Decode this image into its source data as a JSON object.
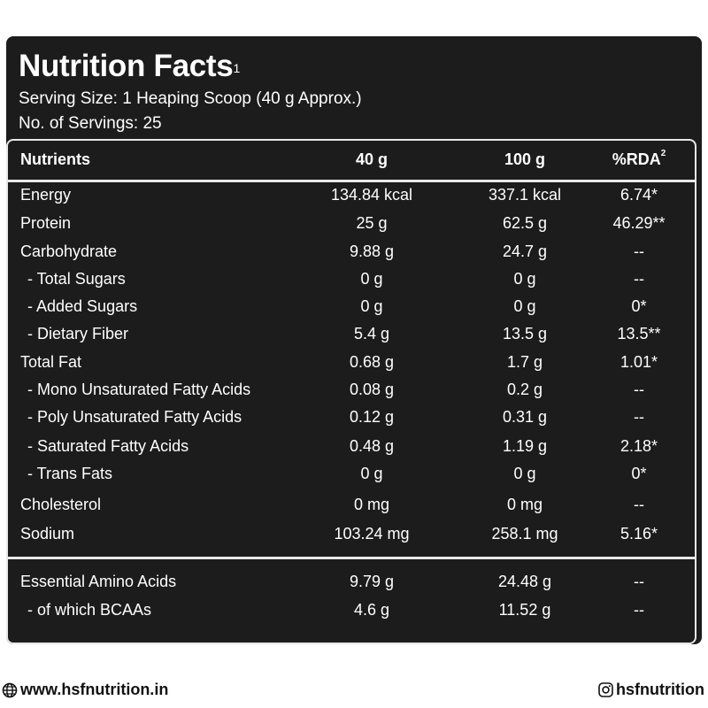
{
  "title": "Nutrition Facts",
  "title_sup": "1",
  "serving_size": "Serving Size: 1 Heaping Scoop (40 g Approx.)",
  "servings": "No. of Servings: 25",
  "header": {
    "nutrients": "Nutrients",
    "col40": "40 g",
    "col100": "100 g",
    "rda": "%RDA",
    "rda_sup": "2"
  },
  "rows": [
    {
      "name": "Energy",
      "v40": "134.84  kcal",
      "v100": "337.1  kcal",
      "rda": "6.74*"
    },
    {
      "name": "Protein",
      "v40": "25  g",
      "v100": "62.5  g",
      "rda": "46.29**"
    },
    {
      "name": "Carbohydrate",
      "v40": "9.88  g",
      "v100": "24.7  g",
      "rda": "--"
    },
    {
      "name": "- Total Sugars",
      "v40": "0 g",
      "v100": "0 g",
      "rda": "--"
    },
    {
      "name": "- Added Sugars",
      "v40": "0 g",
      "v100": "0 g",
      "rda": "0*"
    },
    {
      "name": "- Dietary Fiber",
      "v40": "5.4 g",
      "v100": "13.5 g",
      "rda": "13.5**"
    },
    {
      "name": "Total Fat",
      "v40": "0.68 g",
      "v100": "1.7 g",
      "rda": "1.01*"
    },
    {
      "name": "- Mono Unsaturated Fatty Acids",
      "v40": "0.08 g",
      "v100": "0.2 g",
      "rda": "--"
    },
    {
      "name": "- Poly Unsaturated Fatty Acids",
      "v40": "0.12 g",
      "v100": "0.31 g",
      "rda": "--"
    },
    {
      "name": "- Saturated Fatty Acids",
      "v40": "0.48 g",
      "v100": "1.19 g",
      "rda": "2.18*"
    },
    {
      "name": "- Trans Fats",
      "v40": "0 g",
      "v100": "0 g",
      "rda": "0*"
    },
    {
      "name": "Cholesterol",
      "v40": "0 mg",
      "v100": "0 mg",
      "rda": "--"
    },
    {
      "name": "Sodium",
      "v40": "103.24  mg",
      "v100": "258.1  mg",
      "rda": "5.16*"
    },
    {
      "name": "Essential Amino Acids",
      "v40": "9.79 g",
      "v100": "24.48 g",
      "rda": "--"
    },
    {
      "name": "- of which BCAAs",
      "v40": "4.6  g",
      "v100": "11.52  g",
      "rda": "--"
    }
  ],
  "footer": {
    "website": "www.hsfnutrition.in",
    "website_icon": "globe-icon",
    "instagram": "hsfnutrition",
    "instagram_icon": "instagram-icon"
  }
}
